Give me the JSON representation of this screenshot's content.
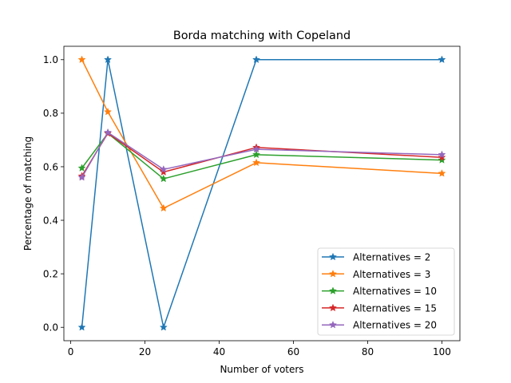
{
  "chart_data": {
    "type": "line",
    "title": "Borda matching with Copeland",
    "xlabel": "Number of voters",
    "ylabel": "Percentage of matching",
    "x": [
      3,
      10,
      25,
      50,
      100
    ],
    "xlim": [
      -1.85,
      104.85
    ],
    "ylim": [
      -0.05,
      1.05
    ],
    "xticks": [
      0,
      20,
      40,
      60,
      80,
      100
    ],
    "xtick_labels": [
      "0",
      "20",
      "40",
      "60",
      "80",
      "100"
    ],
    "yticks": [
      0.0,
      0.2,
      0.4,
      0.6,
      0.8,
      1.0
    ],
    "ytick_labels": [
      "0.0",
      "0.2",
      "0.4",
      "0.6",
      "0.8",
      "1.0"
    ],
    "grid": false,
    "legend_position": "bottom-right",
    "marker": "star",
    "series": [
      {
        "name": "Alternatives = 2",
        "color": "#1f77b4",
        "values": [
          0.0,
          1.0,
          0.0,
          1.0,
          1.0
        ]
      },
      {
        "name": "Alternatives = 3",
        "color": "#ff7f0e",
        "values": [
          1.0,
          0.805,
          0.445,
          0.615,
          0.575
        ]
      },
      {
        "name": "Alternatives = 10",
        "color": "#2ca02c",
        "values": [
          0.595,
          0.725,
          0.555,
          0.645,
          0.625
        ]
      },
      {
        "name": "Alternatives = 15",
        "color": "#d62728",
        "values": [
          0.565,
          0.725,
          0.58,
          0.672,
          0.635
        ]
      },
      {
        "name": "Alternatives = 20",
        "color": "#9467bd",
        "values": [
          0.56,
          0.728,
          0.59,
          0.665,
          0.645
        ]
      }
    ]
  }
}
